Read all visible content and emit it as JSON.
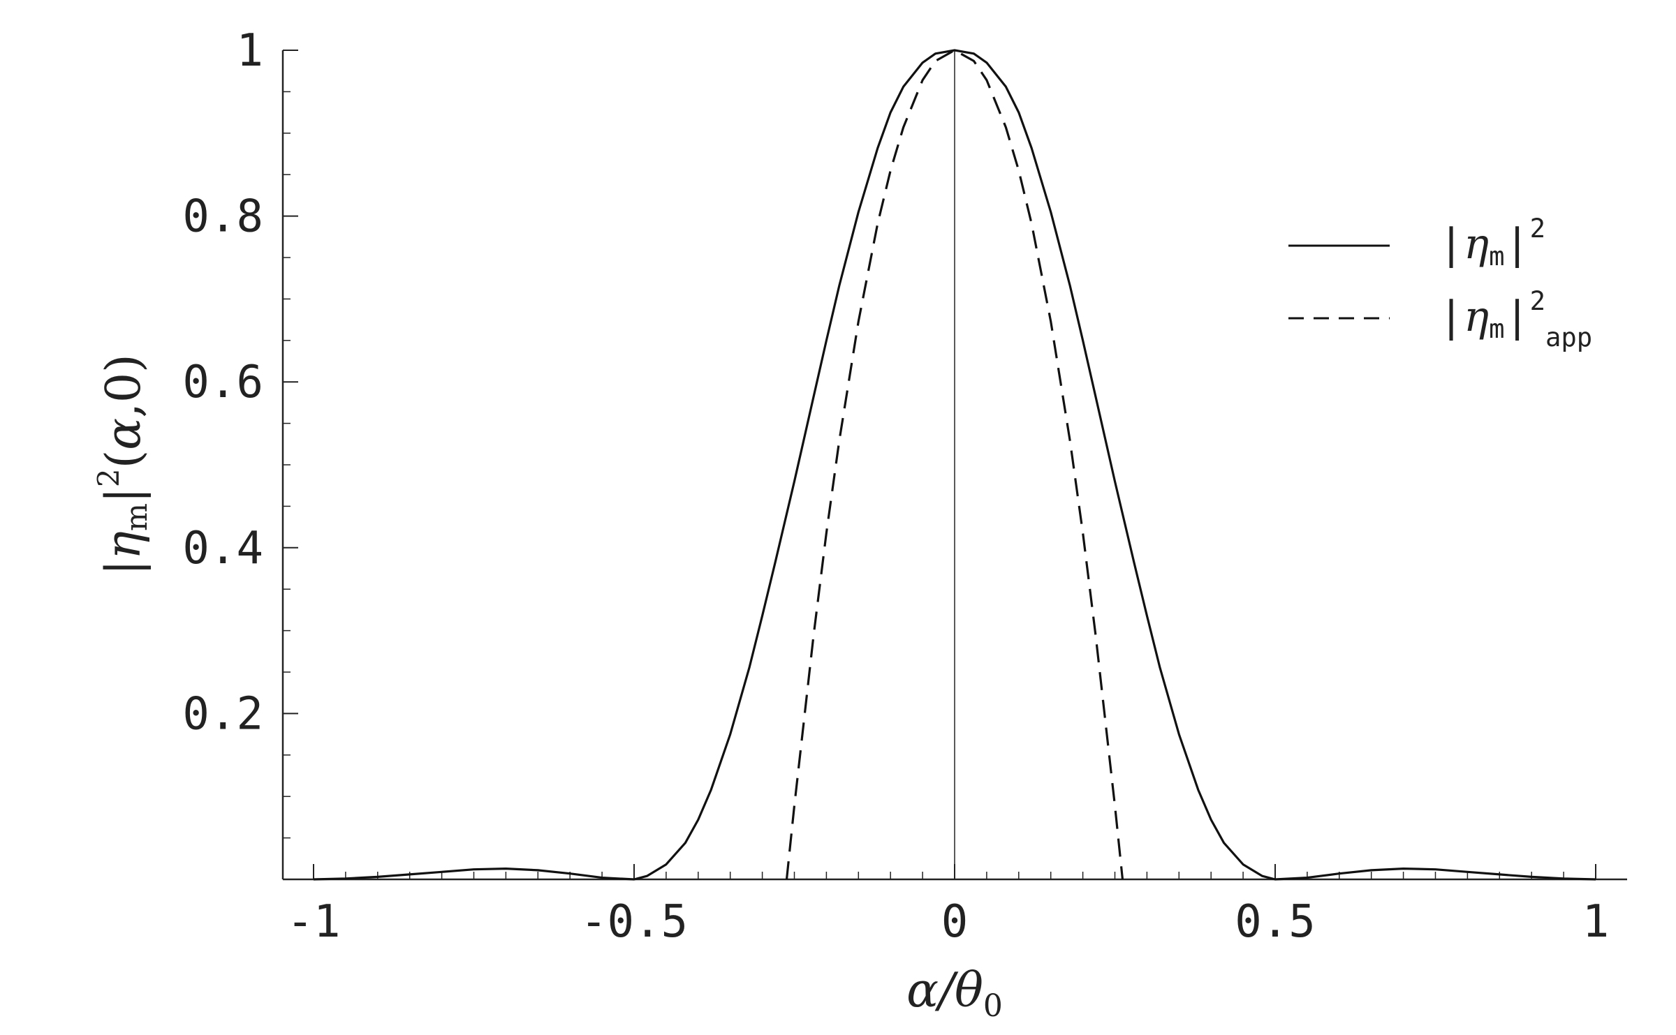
{
  "chart_data": {
    "type": "line",
    "title": "",
    "xlabel": "α/θ0",
    "ylabel": "|ηm|2(α,0)",
    "xlim": [
      -1.05,
      1.05
    ],
    "ylim": [
      0,
      1
    ],
    "x_ticks": [
      -1,
      -0.5,
      0,
      0.5,
      1
    ],
    "x_tick_labels": [
      "-1",
      "-0.5",
      "0",
      "0.5",
      "1"
    ],
    "y_ticks": [
      0.2,
      0.4,
      0.6,
      0.8,
      1
    ],
    "y_tick_labels": [
      "0.2",
      "0.4",
      "0.6",
      "0.8",
      "1"
    ],
    "grid": false,
    "legend_position": "top-right",
    "colors": {
      "line": "#111111",
      "axis": "#222222"
    },
    "legend": [
      {
        "label": "|ηm|2",
        "style": "solid"
      },
      {
        "label": "|ηm|2app",
        "style": "dashed"
      }
    ],
    "series": [
      {
        "name": "|ηm|2",
        "style": "solid",
        "x": [
          -1.0,
          -0.95,
          -0.9,
          -0.85,
          -0.8,
          -0.75,
          -0.7,
          -0.65,
          -0.6,
          -0.55,
          -0.5,
          -0.48,
          -0.45,
          -0.42,
          -0.4,
          -0.38,
          -0.35,
          -0.32,
          -0.3,
          -0.28,
          -0.25,
          -0.22,
          -0.2,
          -0.18,
          -0.15,
          -0.12,
          -0.1,
          -0.08,
          -0.05,
          -0.03,
          0.0,
          0.03,
          0.05,
          0.08,
          0.1,
          0.12,
          0.15,
          0.18,
          0.2,
          0.22,
          0.25,
          0.28,
          0.3,
          0.32,
          0.35,
          0.38,
          0.4,
          0.42,
          0.45,
          0.48,
          0.5,
          0.55,
          0.6,
          0.65,
          0.7,
          0.75,
          0.8,
          0.85,
          0.9,
          0.95,
          1.0
        ],
        "y": [
          0.0,
          0.001,
          0.003,
          0.006,
          0.009,
          0.012,
          0.013,
          0.011,
          0.007,
          0.002,
          0.0,
          0.004,
          0.018,
          0.044,
          0.072,
          0.108,
          0.175,
          0.256,
          0.318,
          0.382,
          0.48,
          0.582,
          0.65,
          0.716,
          0.805,
          0.882,
          0.925,
          0.956,
          0.985,
          0.996,
          1.0,
          0.996,
          0.985,
          0.956,
          0.925,
          0.882,
          0.805,
          0.716,
          0.65,
          0.582,
          0.48,
          0.382,
          0.318,
          0.256,
          0.175,
          0.108,
          0.072,
          0.044,
          0.018,
          0.004,
          0.0,
          0.002,
          0.007,
          0.011,
          0.013,
          0.012,
          0.009,
          0.006,
          0.003,
          0.001,
          0.0
        ]
      },
      {
        "name": "|ηm|2app",
        "style": "dashed",
        "x": [
          -0.262,
          -0.25,
          -0.22,
          -0.2,
          -0.18,
          -0.15,
          -0.12,
          -0.1,
          -0.08,
          -0.05,
          -0.03,
          0.0,
          0.03,
          0.05,
          0.08,
          0.1,
          0.12,
          0.15,
          0.18,
          0.2,
          0.22,
          0.25,
          0.262
        ],
        "y": [
          0.0,
          0.089,
          0.294,
          0.418,
          0.529,
          0.673,
          0.791,
          0.855,
          0.907,
          0.964,
          0.987,
          1.0,
          0.987,
          0.964,
          0.907,
          0.855,
          0.791,
          0.673,
          0.529,
          0.418,
          0.294,
          0.089,
          0.0
        ]
      }
    ]
  }
}
